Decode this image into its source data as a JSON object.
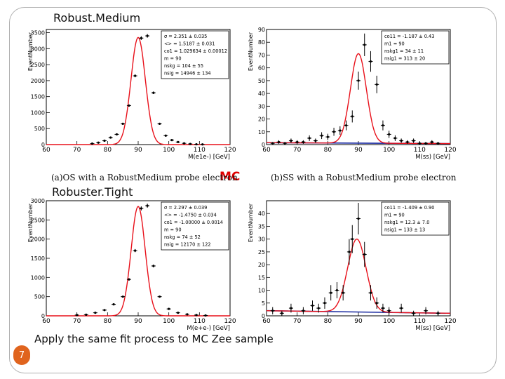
{
  "slide": {
    "title_top": "Robust.Medium",
    "title_bottom": "Robuster.Tight",
    "mc_label": "MC",
    "caption_a": "(a)OS with a RobustMedium probe electron",
    "caption_b": "(b)SS with a RobustMedium probe electron",
    "footer": "Apply the same fit process to MC Zee sample",
    "page_number": "7"
  },
  "colors": {
    "fit_curve": "#e8101a",
    "background_fit": "#1a2aa0",
    "data_points": "#000000",
    "page_badge": "#e0641e",
    "mc_label": "#e00000"
  },
  "chart_data": [
    {
      "type": "scatter",
      "title": "",
      "xlabel": "M(e1e-) [GeV]",
      "ylabel": "EventNumber",
      "xlim": [
        60,
        120
      ],
      "ylim": [
        0,
        3600
      ],
      "xticks": [
        60,
        70,
        80,
        90,
        100,
        110,
        120
      ],
      "yticks": [
        0,
        500,
        1000,
        1500,
        2000,
        2500,
        3000,
        3500
      ],
      "peak_mean": 90,
      "peak_sigma": 2.351,
      "peak_height": 3350,
      "background_level": 0,
      "x": [
        75,
        77,
        79,
        81,
        83,
        85,
        87,
        89,
        91,
        93,
        95,
        97,
        99,
        101,
        103,
        105,
        107,
        109,
        111
      ],
      "y": [
        30,
        60,
        120,
        220,
        320,
        650,
        1220,
        2150,
        3330,
        3400,
        1620,
        650,
        280,
        140,
        80,
        40,
        20,
        10,
        5
      ],
      "stats": [
        "σ =  2.351 ± 0.035",
        "<> =  1.5187 ± 0.031",
        "co1 =  1.029634 ± 0.00012",
        "m =  90",
        "nskg =  104 ± 55",
        "nsig =  14946 ± 134"
      ]
    },
    {
      "type": "scatter",
      "title": "",
      "xlabel": "M(ss) [GeV]",
      "ylabel": "EventNumber",
      "xlim": [
        60,
        120
      ],
      "ylim": [
        0,
        90
      ],
      "xticks": [
        60,
        70,
        80,
        90,
        100,
        110,
        120
      ],
      "yticks": [
        0,
        10,
        20,
        30,
        40,
        50,
        60,
        70,
        80,
        90
      ],
      "peak_mean": 90,
      "peak_sigma": 2.6,
      "peak_height": 70,
      "background_level": 1.5,
      "x": [
        62,
        64,
        66,
        68,
        70,
        72,
        74,
        76,
        78,
        80,
        82,
        84,
        86,
        88,
        90,
        92,
        94,
        96,
        98,
        100,
        102,
        104,
        106,
        108,
        110,
        112,
        114,
        116
      ],
      "y": [
        1,
        2,
        1,
        3,
        2,
        2,
        5,
        3,
        7,
        6,
        10,
        11,
        15,
        22,
        50,
        78,
        65,
        47,
        15,
        8,
        5,
        3,
        2,
        3,
        1,
        1,
        2,
        1
      ],
      "stats": [
        "co11 =  -1.187 ± 0.43",
        "m1 =  90",
        "nskg1 =  34 ± 11",
        "nsig1 =  313 ± 20"
      ]
    },
    {
      "type": "scatter",
      "title": "",
      "xlabel": "M(e+e-) [GeV]",
      "ylabel": "EventNumber",
      "xlim": [
        60,
        120
      ],
      "ylim": [
        0,
        3000
      ],
      "xticks": [
        60,
        70,
        80,
        90,
        100,
        110,
        120
      ],
      "yticks": [
        0,
        500,
        1000,
        1500,
        2000,
        2500,
        3000
      ],
      "peak_mean": 90,
      "peak_sigma": 2.297,
      "peak_height": 2850,
      "background_level": 0,
      "x": [
        70,
        73,
        76,
        79,
        82,
        85,
        87,
        89,
        91,
        93,
        95,
        97,
        100,
        103,
        106,
        109,
        112
      ],
      "y": [
        20,
        30,
        80,
        150,
        300,
        500,
        950,
        1700,
        2800,
        2870,
        1300,
        500,
        180,
        80,
        40,
        20,
        10
      ],
      "stats": [
        "σ =  2.297 ± 0.039",
        "<> =  -1.4750 ± 0.034",
        "co1 =  -1.00000 ± 0.0014",
        "m =  90",
        "nskg =  74 ± 52",
        "nsig =  12170 ± 122"
      ]
    },
    {
      "type": "scatter",
      "title": "",
      "xlabel": "M(ss) [GeV]",
      "ylabel": "EventNumber",
      "xlim": [
        60,
        120
      ],
      "ylim": [
        0,
        45
      ],
      "xticks": [
        60,
        70,
        80,
        90,
        100,
        110,
        120
      ],
      "yticks": [
        0,
        5,
        10,
        15,
        20,
        25,
        30,
        35,
        40
      ],
      "peak_mean": 89.5,
      "peak_sigma": 3,
      "peak_height": 28.5,
      "background_level": 2,
      "x": [
        62,
        65,
        68,
        72,
        75,
        77,
        79,
        81,
        83,
        85,
        87,
        88,
        90,
        92,
        94,
        96,
        98,
        100,
        104,
        108,
        112,
        116
      ],
      "y": [
        2,
        1,
        3,
        2,
        4,
        3,
        5,
        9,
        10,
        9,
        25,
        30,
        38,
        24,
        9,
        5,
        3,
        2,
        3,
        1,
        2,
        1
      ],
      "stats": [
        "co11 =  -1.409 ± 0.90",
        "m1 =  90",
        "nskg1 =  12.3 ± 7.0",
        "nsig1 =  133 ± 13"
      ]
    }
  ]
}
